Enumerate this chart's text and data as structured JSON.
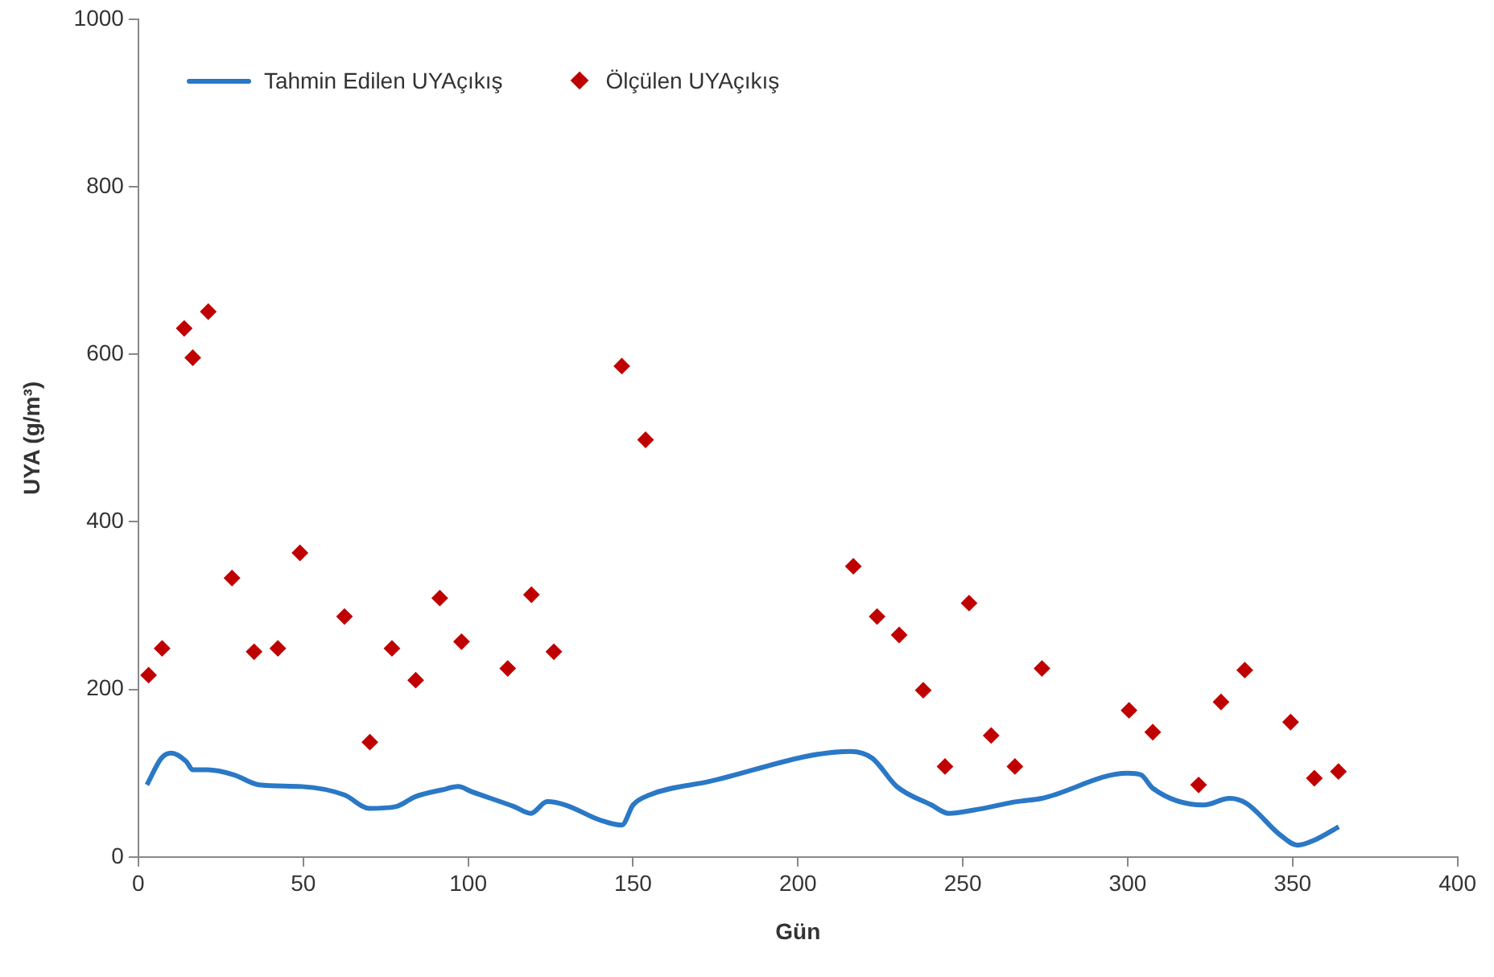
{
  "chart_data": {
    "type": "scatter",
    "xlabel": "Gün",
    "ylabel": "UYA (g/m³)",
    "xlim": [
      0,
      400
    ],
    "xticks": [
      0,
      50,
      100,
      150,
      200,
      250,
      300,
      350,
      400
    ],
    "ylim": [
      0,
      1000
    ],
    "yticks": [
      0,
      200,
      400,
      600,
      800,
      1000
    ],
    "grid": false,
    "legend": "top left",
    "series": [
      {
        "name": "Tahmin Edilen UYAçıkış",
        "type": "line",
        "marker": "none",
        "line_style": "solid",
        "color": "#2a78c6",
        "x": [
          2.6,
          7,
          10,
          14.5,
          16.5,
          21,
          29,
          36.6,
          49.5,
          62.5,
          70,
          78,
          84,
          92,
          97,
          101,
          114,
          119,
          124,
          129.5,
          140,
          146.6,
          150,
          155,
          173,
          216,
          222.5,
          230,
          240.5,
          245.7,
          253.4,
          266.3,
          274,
          300,
          304,
          307.6,
          323,
          331,
          336,
          346.3,
          351.5,
          356.6,
          364
        ],
        "values": [
          86,
          118,
          124,
          114,
          104,
          104,
          98,
          86,
          84,
          74,
          58,
          60,
          72,
          80,
          84,
          78,
          60,
          52,
          66,
          62,
          44,
          38,
          62,
          74,
          90,
          126,
          118,
          84,
          62,
          52,
          56,
          66,
          70,
          100,
          98,
          82,
          62,
          70,
          64,
          26,
          14,
          20,
          36
        ]
      },
      {
        "name": "Ölçülen UYAçıkış",
        "marker": "diamond",
        "color": "#c00000",
        "x": [
          3.1,
          7.2,
          13.9,
          16.5,
          21.2,
          28.4,
          35.1,
          42.3,
          49,
          62.5,
          70.2,
          76.9,
          84.1,
          91.4,
          98,
          112,
          119.2,
          126,
          146.6,
          153.8,
          216.8,
          224,
          230.7,
          238,
          244.6,
          251.9,
          258.6,
          265.8,
          274,
          300.4,
          307.6,
          321.5,
          328.3,
          335.5,
          349.4,
          356.6,
          363.9
        ],
        "values": [
          217,
          249,
          631,
          596,
          651,
          333,
          245,
          249,
          363,
          287,
          137,
          249,
          211,
          309,
          257,
          225,
          313,
          245,
          586,
          498,
          347,
          287,
          265,
          199,
          108,
          303,
          145,
          108,
          225,
          175,
          149,
          86,
          185,
          223,
          161,
          94,
          102
        ]
      }
    ]
  }
}
